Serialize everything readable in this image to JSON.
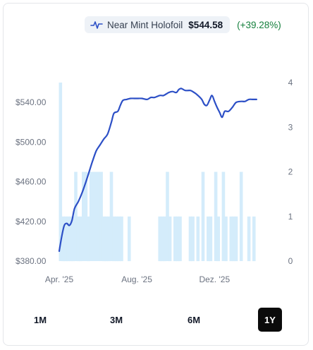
{
  "legend": {
    "series_name": "Near Mint Holofoil",
    "price": "$544.58",
    "change": "(+39.28%)",
    "icon": "line-chart-icon",
    "line_color": "#2c4fc6",
    "change_color": "#15803d"
  },
  "ranges": [
    {
      "label": "1M",
      "active": false
    },
    {
      "label": "3M",
      "active": false
    },
    {
      "label": "6M",
      "active": false
    },
    {
      "label": "1Y",
      "active": true
    }
  ],
  "chart_data": {
    "type": "line",
    "y_left": {
      "ticks": [
        380,
        420,
        460,
        500,
        540
      ],
      "tick_labels": [
        "$380.00",
        "$420.00",
        "$460.00",
        "$500.00",
        "$540.00"
      ],
      "range": [
        380,
        560
      ]
    },
    "y_right": {
      "ticks": [
        0,
        1,
        2,
        3,
        4
      ],
      "tick_labels": [
        "0",
        "1",
        "2",
        "3",
        "4"
      ],
      "range": [
        0,
        4
      ]
    },
    "x_labels": [
      {
        "label": "Apr. '25",
        "day": 0
      },
      {
        "label": "Aug. '25",
        "day": 122
      },
      {
        "label": "Dez. '25",
        "day": 244
      }
    ],
    "x_range": [
      0,
      350
    ],
    "price_series": {
      "color": "#2c4fc6",
      "points": [
        [
          0,
          390
        ],
        [
          4,
          405
        ],
        [
          8,
          416
        ],
        [
          12,
          418
        ],
        [
          16,
          416
        ],
        [
          20,
          421
        ],
        [
          24,
          433
        ],
        [
          30,
          440
        ],
        [
          36,
          449
        ],
        [
          42,
          460
        ],
        [
          48,
          472
        ],
        [
          52,
          480
        ],
        [
          58,
          491
        ],
        [
          64,
          497
        ],
        [
          70,
          503
        ],
        [
          76,
          508
        ],
        [
          82,
          520
        ],
        [
          86,
          529
        ],
        [
          92,
          531
        ],
        [
          96,
          537
        ],
        [
          100,
          542
        ],
        [
          106,
          543
        ],
        [
          112,
          544
        ],
        [
          118,
          544
        ],
        [
          124,
          544
        ],
        [
          130,
          544
        ],
        [
          138,
          543
        ],
        [
          144,
          545
        ],
        [
          150,
          545
        ],
        [
          158,
          547
        ],
        [
          164,
          547
        ],
        [
          172,
          550
        ],
        [
          178,
          551
        ],
        [
          184,
          550
        ],
        [
          188,
          553
        ],
        [
          192,
          554
        ],
        [
          198,
          552
        ],
        [
          206,
          552
        ],
        [
          212,
          550
        ],
        [
          218,
          547
        ],
        [
          224,
          543
        ],
        [
          228,
          538
        ],
        [
          232,
          537
        ],
        [
          236,
          542
        ],
        [
          240,
          547
        ],
        [
          244,
          541
        ],
        [
          248,
          535
        ],
        [
          252,
          530
        ],
        [
          256,
          525
        ],
        [
          260,
          531
        ],
        [
          266,
          531
        ],
        [
          272,
          535
        ],
        [
          278,
          540
        ],
        [
          286,
          541
        ],
        [
          292,
          541
        ],
        [
          298,
          543
        ],
        [
          304,
          543
        ],
        [
          310,
          543
        ]
      ]
    },
    "volume_series": {
      "color": "#d4ecfb",
      "bars": [
        [
          2,
          4
        ],
        [
          6,
          1
        ],
        [
          10,
          1
        ],
        [
          14,
          1
        ],
        [
          18,
          1
        ],
        [
          22,
          1
        ],
        [
          26,
          2
        ],
        [
          30,
          1
        ],
        [
          34,
          1
        ],
        [
          38,
          2
        ],
        [
          42,
          2
        ],
        [
          46,
          1
        ],
        [
          50,
          2
        ],
        [
          54,
          2
        ],
        [
          58,
          2
        ],
        [
          62,
          2
        ],
        [
          66,
          2
        ],
        [
          70,
          1
        ],
        [
          74,
          1
        ],
        [
          78,
          1
        ],
        [
          82,
          2
        ],
        [
          86,
          1
        ],
        [
          90,
          1
        ],
        [
          94,
          1
        ],
        [
          98,
          1
        ],
        [
          110,
          1
        ],
        [
          158,
          1
        ],
        [
          162,
          1
        ],
        [
          166,
          1
        ],
        [
          170,
          2
        ],
        [
          174,
          1
        ],
        [
          182,
          1
        ],
        [
          186,
          1
        ],
        [
          190,
          1
        ],
        [
          206,
          1
        ],
        [
          210,
          1
        ],
        [
          218,
          1
        ],
        [
          226,
          2
        ],
        [
          234,
          1
        ],
        [
          238,
          1
        ],
        [
          246,
          2
        ],
        [
          250,
          1
        ],
        [
          258,
          2
        ],
        [
          262,
          1
        ],
        [
          270,
          1
        ],
        [
          274,
          1
        ],
        [
          278,
          1
        ],
        [
          286,
          2
        ],
        [
          298,
          1
        ],
        [
          306,
          1
        ]
      ]
    }
  }
}
